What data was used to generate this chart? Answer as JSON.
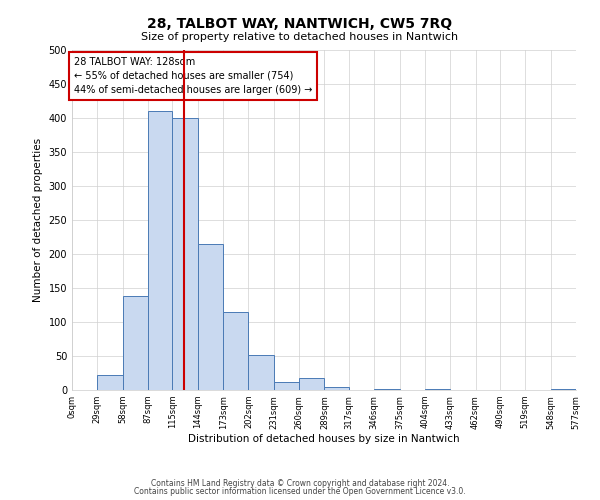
{
  "title": "28, TALBOT WAY, NANTWICH, CW5 7RQ",
  "subtitle": "Size of property relative to detached houses in Nantwich",
  "xlabel": "Distribution of detached houses by size in Nantwich",
  "ylabel": "Number of detached properties",
  "bin_edges": [
    0,
    29,
    58,
    87,
    115,
    144,
    173,
    202,
    231,
    260,
    289,
    317,
    346,
    375,
    404,
    433,
    462,
    490,
    519,
    548,
    577
  ],
  "bin_counts": [
    0,
    22,
    138,
    410,
    400,
    215,
    115,
    52,
    12,
    17,
    5,
    0,
    1,
    0,
    1,
    0,
    0,
    0,
    0,
    1
  ],
  "bar_facecolor": "#c9d9f0",
  "bar_edgecolor": "#4a7ab5",
  "property_value": 128,
  "vline_color": "#cc0000",
  "annotation_line1": "28 TALBOT WAY: 128sqm",
  "annotation_line2": "← 55% of detached houses are smaller (754)",
  "annotation_line3": "44% of semi-detached houses are larger (609) →",
  "annotation_box_edgecolor": "#cc0000",
  "annotation_box_facecolor": "#ffffff",
  "ylim": [
    0,
    500
  ],
  "yticks": [
    0,
    50,
    100,
    150,
    200,
    250,
    300,
    350,
    400,
    450,
    500
  ],
  "tick_labels": [
    "0sqm",
    "29sqm",
    "58sqm",
    "87sqm",
    "115sqm",
    "144sqm",
    "173sqm",
    "202sqm",
    "231sqm",
    "260sqm",
    "289sqm",
    "317sqm",
    "346sqm",
    "375sqm",
    "404sqm",
    "433sqm",
    "462sqm",
    "490sqm",
    "519sqm",
    "548sqm",
    "577sqm"
  ],
  "footer_line1": "Contains HM Land Registry data © Crown copyright and database right 2024.",
  "footer_line2": "Contains public sector information licensed under the Open Government Licence v3.0.",
  "bg_color": "#ffffff",
  "grid_color": "#d0d0d0"
}
